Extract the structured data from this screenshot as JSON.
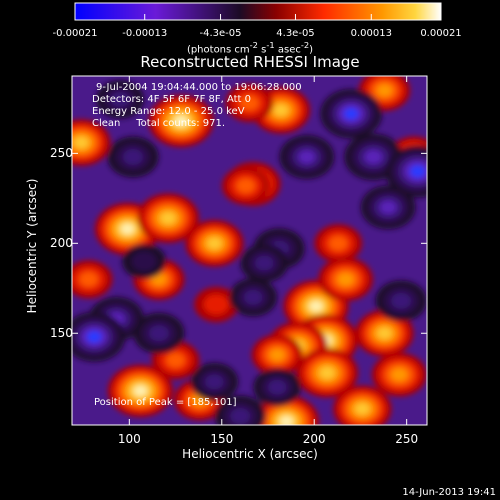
{
  "chart_data": {
    "type": "heatmap",
    "title": "Reconstructed RHESSI Image",
    "xlabel": "Heliocentric X (arcsec)",
    "ylabel": "Heliocentric Y (arcsec)",
    "x_ticks": [
      "100",
      "150",
      "200",
      "250"
    ],
    "x_tick_values": [
      100,
      150,
      200,
      250
    ],
    "y_ticks": [
      "150",
      "200",
      "250"
    ],
    "y_tick_values": [
      150,
      200,
      250
    ],
    "xlim": [
      69,
      261
    ],
    "ylim": [
      99,
      293
    ],
    "colorbar": {
      "ticks": [
        "-0.00021",
        "-0.00013",
        "-4.3e-05",
        "4.3e-05",
        "0.00013",
        "0.00021"
      ],
      "tick_values": [
        -0.00021,
        -0.00013,
        -4.3e-05,
        4.3e-05,
        0.00013,
        0.00021
      ],
      "range": [
        -0.00021,
        0.00021
      ],
      "units_prefix": "(photons cm",
      "units_exp1": "-2",
      "units_mid": " s",
      "units_exp2": "-1",
      "units_mid2": " asec",
      "units_exp3": "-2",
      "units_suffix": ")",
      "colors": [
        "#1010ff",
        "#6a18d8",
        "#2a0a36",
        "#c00000",
        "#ff3c00",
        "#ff9a00",
        "#ffffff"
      ]
    },
    "annotations": [
      "9-Jul-2004 19:04:44.000 to 19:06:28.000",
      "Detectors: 4F 5F 6F 7F 8F, Att 0",
      "Energy Range: 12.0 - 25.0 keV",
      "Clean     Total counts: 971."
    ],
    "peak_text": "Position of Peak = [185,101]",
    "footer": "14-Jun-2013 19:41",
    "blobs": [
      {
        "x": 128,
        "y": 268,
        "v": 1.0
      },
      {
        "x": 167,
        "y": 233,
        "v": 0.7
      },
      {
        "x": 182,
        "y": 274,
        "v": 0.8
      },
      {
        "x": 165,
        "y": 278,
        "v": 0.5
      },
      {
        "x": 74,
        "y": 256,
        "v": 0.8
      },
      {
        "x": 99,
        "y": 208,
        "v": 1.0
      },
      {
        "x": 121,
        "y": 214,
        "v": 0.9
      },
      {
        "x": 146,
        "y": 200,
        "v": 0.8
      },
      {
        "x": 163,
        "y": 232,
        "v": 0.5
      },
      {
        "x": 213,
        "y": 200,
        "v": 0.5
      },
      {
        "x": 254,
        "y": 248,
        "v": 0.6
      },
      {
        "x": 238,
        "y": 285,
        "v": 0.6
      },
      {
        "x": 78,
        "y": 180,
        "v": 0.5
      },
      {
        "x": 116,
        "y": 180,
        "v": 0.6
      },
      {
        "x": 147,
        "y": 166,
        "v": 0.4
      },
      {
        "x": 201,
        "y": 165,
        "v": 1.0
      },
      {
        "x": 217,
        "y": 180,
        "v": 0.7
      },
      {
        "x": 206,
        "y": 146,
        "v": 1.0
      },
      {
        "x": 191,
        "y": 143,
        "v": 0.85
      },
      {
        "x": 238,
        "y": 150,
        "v": 0.8
      },
      {
        "x": 246,
        "y": 127,
        "v": 0.7
      },
      {
        "x": 180,
        "y": 138,
        "v": 0.6
      },
      {
        "x": 207,
        "y": 128,
        "v": 0.9
      },
      {
        "x": 125,
        "y": 135,
        "v": 0.5
      },
      {
        "x": 106,
        "y": 118,
        "v": 1.0
      },
      {
        "x": 138,
        "y": 113,
        "v": 0.6
      },
      {
        "x": 185,
        "y": 101,
        "v": 1.0
      },
      {
        "x": 226,
        "y": 108,
        "v": 0.8
      },
      {
        "x": 102,
        "y": 248,
        "v": -0.6
      },
      {
        "x": 95,
        "y": 280,
        "v": -0.5
      },
      {
        "x": 196,
        "y": 248,
        "v": -0.7
      },
      {
        "x": 220,
        "y": 272,
        "v": -0.9
      },
      {
        "x": 232,
        "y": 248,
        "v": -0.8
      },
      {
        "x": 256,
        "y": 240,
        "v": -1.0
      },
      {
        "x": 240,
        "y": 220,
        "v": -0.7
      },
      {
        "x": 181,
        "y": 197,
        "v": -0.6
      },
      {
        "x": 173,
        "y": 189,
        "v": -0.5
      },
      {
        "x": 93,
        "y": 158,
        "v": -0.7
      },
      {
        "x": 81,
        "y": 148,
        "v": -0.9
      },
      {
        "x": 116,
        "y": 150,
        "v": -0.6
      },
      {
        "x": 167,
        "y": 170,
        "v": -0.5
      },
      {
        "x": 180,
        "y": 120,
        "v": -0.5
      },
      {
        "x": 160,
        "y": 104,
        "v": -0.6
      },
      {
        "x": 247,
        "y": 168,
        "v": -0.6
      },
      {
        "x": 146,
        "y": 123,
        "v": -0.5
      },
      {
        "x": 108,
        "y": 190,
        "v": -0.4
      }
    ]
  }
}
